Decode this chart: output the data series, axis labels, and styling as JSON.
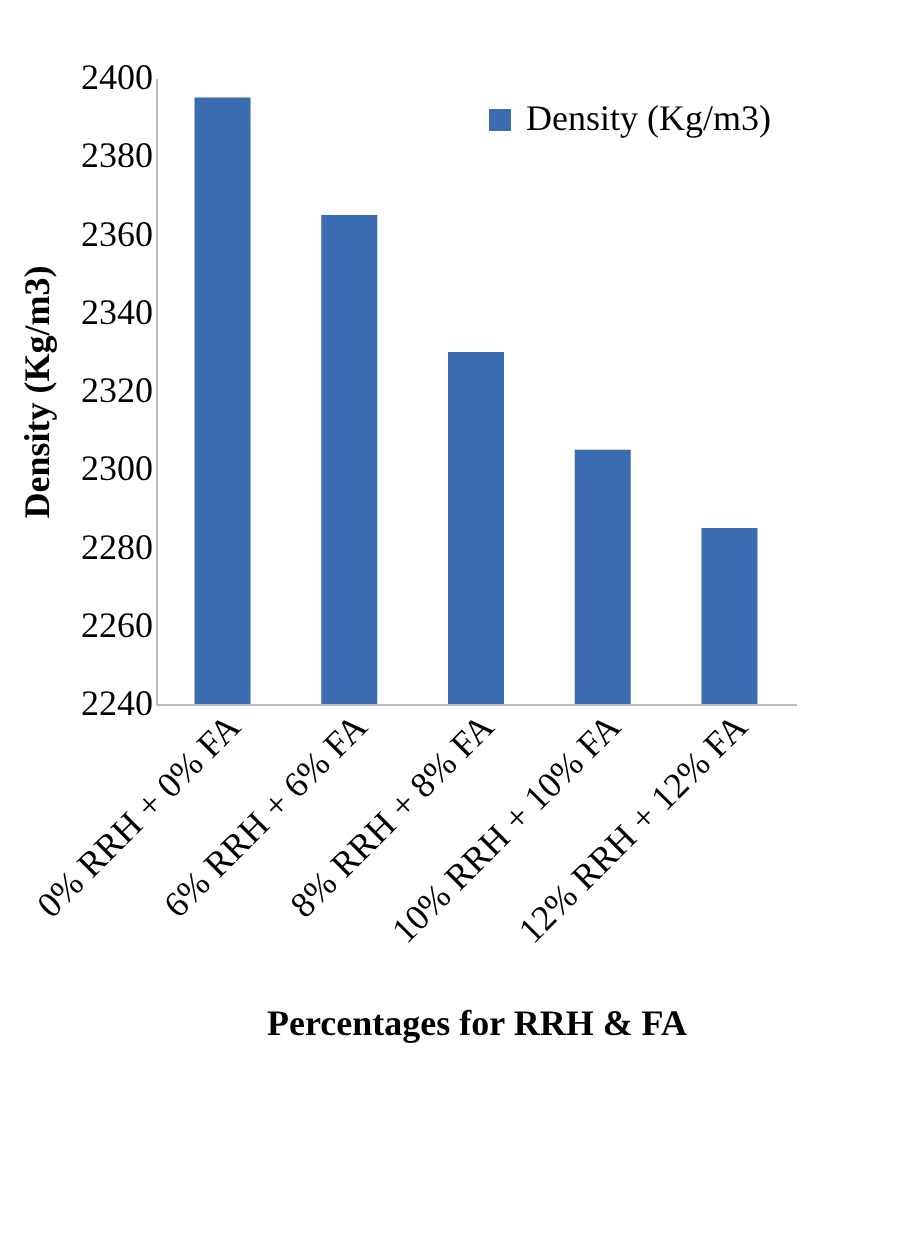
{
  "chart_data": {
    "type": "bar",
    "xlabel": "Percentages for RRH & FA",
    "ylabel": "Density (Kg/m3)",
    "categories": [
      "0% RRH + 0% FA",
      "6% RRH + 6% FA",
      "8% RRH + 8% FA",
      "10% RRH + 10% FA",
      "12% RRH + 12% FA"
    ],
    "series": [
      {
        "name": "Density (Kg/m3)",
        "color": "#3b6bb0",
        "values": [
          2395,
          2365,
          2330,
          2305,
          2285
        ]
      }
    ],
    "ylim": [
      2240,
      2400
    ],
    "yticks": [
      2240,
      2260,
      2280,
      2300,
      2320,
      2340,
      2360,
      2380,
      2400
    ],
    "grid": false,
    "legend": "top right"
  }
}
